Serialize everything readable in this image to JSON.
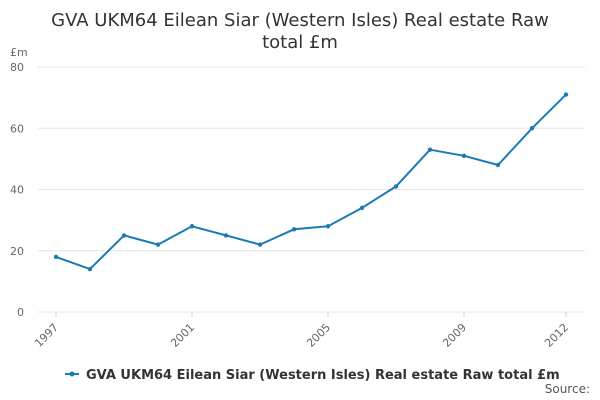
{
  "chart_data": {
    "type": "line",
    "title_line1": "GVA UKM64 Eilean Siar (Western Isles) Real estate Raw",
    "title_line2": "total £m",
    "ylabel": "£m",
    "xlabel": "",
    "ylim": [
      0,
      80
    ],
    "yticks": [
      "0",
      "20",
      "40",
      "60",
      "80"
    ],
    "xlim": [
      1997,
      2012
    ],
    "xticks": [
      "1997",
      "2001",
      "2005",
      "2009",
      "2012"
    ],
    "grid": true,
    "legend_position": "bottom",
    "color": "#1a7ab5",
    "series": [
      {
        "name": "GVA UKM64 Eilean Siar (Western Isles) Real estate Raw total £m",
        "x": [
          1997,
          1998,
          1999,
          2000,
          2001,
          2002,
          2003,
          2004,
          2005,
          2006,
          2007,
          2008,
          2009,
          2010,
          2011,
          2012
        ],
        "values": [
          18,
          14,
          25,
          22,
          28,
          25,
          22,
          27,
          28,
          34,
          41,
          53,
          51,
          48,
          60,
          71
        ]
      }
    ]
  },
  "footer": {
    "source_label": "Source:"
  }
}
